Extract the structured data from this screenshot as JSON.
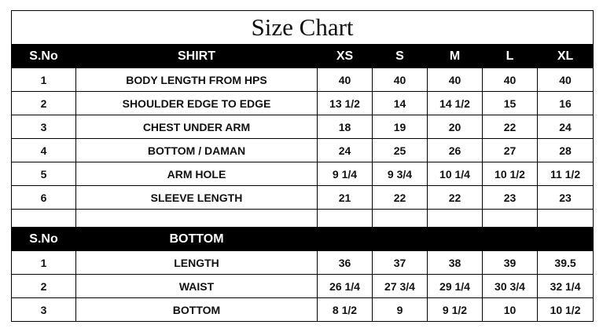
{
  "title": "Size Chart",
  "colors": {
    "header_bg": "#000000",
    "header_text": "#ffffff"
  },
  "shirt": {
    "headers": [
      "S.No",
      "SHIRT",
      "XS",
      "S",
      "M",
      "L",
      "XL"
    ],
    "rows": [
      [
        "1",
        "BODY LENGTH FROM HPS",
        "40",
        "40",
        "40",
        "40",
        "40"
      ],
      [
        "2",
        "SHOULDER EDGE TO EDGE",
        "13 1/2",
        "14",
        "14 1/2",
        "15",
        "16"
      ],
      [
        "3",
        "CHEST UNDER ARM",
        "18",
        "19",
        "20",
        "22",
        "24"
      ],
      [
        "4",
        "BOTTOM / DAMAN",
        "24",
        "25",
        "26",
        "27",
        "28"
      ],
      [
        "5",
        "ARM HOLE",
        "9 1/4",
        "9 3/4",
        "10 1/4",
        "10 1/2",
        "11 1/2"
      ],
      [
        "6",
        "SLEEVE LENGTH",
        "21",
        "22",
        "22",
        "23",
        "23"
      ]
    ]
  },
  "bottom": {
    "headers": [
      "S.No",
      "BOTTOM"
    ],
    "rows": [
      [
        "1",
        "LENGTH",
        "36",
        "37",
        "38",
        "39",
        "39.5"
      ],
      [
        "2",
        "WAIST",
        "26 1/4",
        "27 3/4",
        "29 1/4",
        "30 3/4",
        "32 1/4"
      ],
      [
        "3",
        "BOTTOM",
        "8 1/2",
        "9",
        "9 1/2",
        "10",
        "10 1/2"
      ]
    ]
  }
}
